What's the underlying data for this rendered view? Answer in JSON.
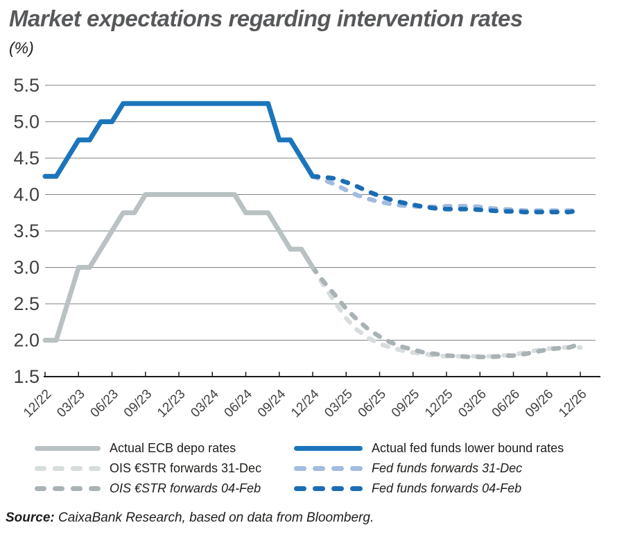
{
  "header": {
    "title": "Market expectations regarding intervention rates",
    "subtitle": "(%)"
  },
  "source": {
    "label": "Source:",
    "text": " CaixaBank Research, based on data from Bloomberg."
  },
  "legend": {
    "left": [
      {
        "name": "Actual ECB depo rates",
        "style": "solid",
        "color": "#b9c1c3",
        "italic": false
      },
      {
        "name": "OIS €STR forwards 31-Dec",
        "style": "dashed",
        "color": "#d7dcdd",
        "italic": false
      },
      {
        "name": "OIS €STR forwards 04-Feb",
        "style": "dashed",
        "color": "#a9b2b5",
        "italic": true
      }
    ],
    "right": [
      {
        "name": "Actual fed funds lower bound rates",
        "style": "solid",
        "color": "#1b75bb",
        "italic": false
      },
      {
        "name": "Fed funds forwards 31-Dec",
        "style": "dashed",
        "color": "#a2bbe0",
        "italic": true
      },
      {
        "name": "Fed funds forwards 04-Feb",
        "style": "dashed",
        "color": "#1a6db3",
        "italic": true
      }
    ]
  },
  "chart_data": {
    "type": "line",
    "title": "Market expectations regarding intervention rates",
    "ylabel": "(%)",
    "ylim": [
      1.5,
      5.5
    ],
    "y_ticks": [
      5.5,
      5.0,
      4.5,
      4.0,
      3.5,
      3.0,
      2.5,
      2.0,
      1.5
    ],
    "x_tick_labels": [
      "12/22",
      "03/23",
      "06/23",
      "09/23",
      "12/23",
      "03/24",
      "06/24",
      "09/24",
      "12/24",
      "03/25",
      "06/25",
      "09/25",
      "12/25",
      "03/26",
      "06/26",
      "09/26",
      "12/26"
    ],
    "months_per_tick": 3,
    "grid": true,
    "legend_position": "bottom",
    "colors": {
      "gridline": "#7f8285",
      "axis": "#1a1a1a",
      "tick_label": "#3f4041"
    },
    "series": [
      {
        "id": "ois-estr-forwards-31dec",
        "name": "OIS €STR forwards 31-Dec",
        "color": "#d7dcdd",
        "dashed": true,
        "start_month": 24,
        "values": [
          3.0,
          2.75,
          2.52,
          2.3,
          2.14,
          2.03,
          1.95,
          1.9,
          1.86,
          1.83,
          1.81,
          1.79,
          1.78,
          1.78,
          1.78,
          1.78,
          1.78,
          1.79,
          1.8,
          1.83,
          1.86,
          1.88,
          1.9,
          1.9,
          1.9
        ]
      },
      {
        "id": "ois-estr-forwards-04feb",
        "name": "OIS €STR forwards 04-Feb",
        "color": "#a9b2b5",
        "dashed": true,
        "start_month": 24,
        "values": [
          3.0,
          2.8,
          2.62,
          2.43,
          2.28,
          2.15,
          2.05,
          1.97,
          1.91,
          1.87,
          1.83,
          1.81,
          1.79,
          1.78,
          1.77,
          1.77,
          1.77,
          1.78,
          1.79,
          1.81,
          1.84,
          1.87,
          1.89,
          1.9,
          1.95
        ]
      },
      {
        "id": "actual-ecb-depo-rates",
        "name": "Actual ECB depo rates",
        "color": "#b9c1c3",
        "dashed": false,
        "start_month": 0,
        "values": [
          2.0,
          2.0,
          2.5,
          3.0,
          3.0,
          3.25,
          3.5,
          3.75,
          3.75,
          4.0,
          4.0,
          4.0,
          4.0,
          4.0,
          4.0,
          4.0,
          4.0,
          4.0,
          3.75,
          3.75,
          3.75,
          3.5,
          3.25,
          3.25,
          3.0
        ]
      },
      {
        "id": "fed-funds-forwards-31dec",
        "name": "Fed funds forwards 31-Dec",
        "color": "#a2bbe0",
        "dashed": true,
        "start_month": 24,
        "values": [
          4.25,
          4.2,
          4.14,
          4.06,
          3.99,
          3.94,
          3.9,
          3.87,
          3.85,
          3.84,
          3.83,
          3.83,
          3.84,
          3.84,
          3.84,
          3.83,
          3.81,
          3.8,
          3.79,
          3.78,
          3.78,
          3.78,
          3.78,
          3.78,
          3.78
        ]
      },
      {
        "id": "fed-funds-forwards-04feb",
        "name": "Fed funds forwards 04-Feb",
        "color": "#1a6db3",
        "dashed": true,
        "start_month": 24,
        "values": [
          4.25,
          4.24,
          4.22,
          4.17,
          4.11,
          4.04,
          3.98,
          3.93,
          3.89,
          3.86,
          3.83,
          3.81,
          3.8,
          3.8,
          3.8,
          3.79,
          3.78,
          3.77,
          3.77,
          3.76,
          3.76,
          3.76,
          3.76,
          3.76,
          3.78
        ]
      },
      {
        "id": "actual-fed-funds-lower-bound-rates",
        "name": "Actual fed funds lower bound rates",
        "color": "#1b75bb",
        "dashed": false,
        "start_month": 0,
        "values": [
          4.25,
          4.25,
          4.5,
          4.75,
          4.75,
          5.0,
          5.0,
          5.25,
          5.25,
          5.25,
          5.25,
          5.25,
          5.25,
          5.25,
          5.25,
          5.25,
          5.25,
          5.25,
          5.25,
          5.25,
          5.25,
          4.75,
          4.75,
          4.5,
          4.25
        ]
      }
    ]
  }
}
